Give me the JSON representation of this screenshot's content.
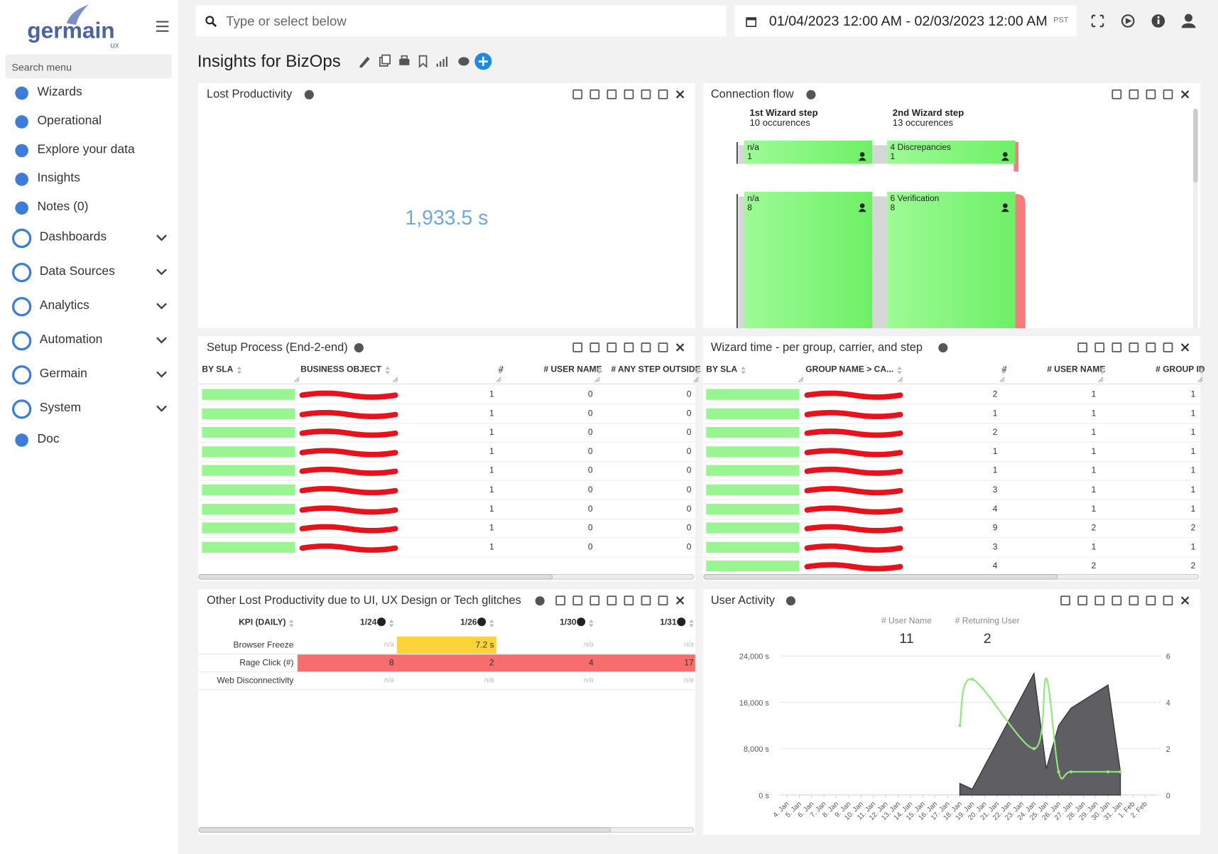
{
  "sidebar": {
    "logo": "germain",
    "logo_sub": "UX",
    "search_placeholder": "Search menu",
    "menu": [
      "Wizards",
      "Operational",
      "Explore your data",
      "Insights",
      "Notes (0)",
      "Dashboards",
      "Data Sources",
      "Analytics",
      "Automation",
      "Germain",
      "System",
      "Doc"
    ]
  },
  "topbar": {
    "search_placeholder": "Type or select below",
    "date_range": "01/04/2023 12:00 AM - 02/03/2023 12:00 AM",
    "timezone": "PST"
  },
  "page_title": "Insights for BizOps",
  "panels": {
    "lost_productivity": {
      "title": "Lost Productivity",
      "value": "1,933.5 s"
    },
    "connection_flow": {
      "title": "Connection flow",
      "steps": [
        {
          "name": "1st Wizard step",
          "occurrences": "10 occurences",
          "nodes": [
            {
              "label": "n/a",
              "count": 1
            },
            {
              "label": "n/a",
              "count": 8
            }
          ]
        },
        {
          "name": "2nd Wizard step",
          "occurrences": "13 occurences",
          "nodes": [
            {
              "label": "4 Discrepancies",
              "count": 1
            },
            {
              "label": "6 Verification",
              "count": 8
            }
          ]
        }
      ]
    },
    "setup_process": {
      "title": "Setup Process (End-2-end)",
      "columns": [
        "BY SLA",
        "BUSINESS OBJECT",
        "#",
        "# USER NAME",
        "# ANY STEP OUTSIDE"
      ],
      "rows": [
        [
          1,
          0,
          0
        ],
        [
          1,
          0,
          0
        ],
        [
          1,
          0,
          0
        ],
        [
          1,
          0,
          0
        ],
        [
          1,
          0,
          0
        ],
        [
          1,
          0,
          0
        ],
        [
          1,
          0,
          0
        ],
        [
          1,
          0,
          0
        ],
        [
          1,
          0,
          0
        ]
      ]
    },
    "wizard_time": {
      "title": "Wizard time - per group, carrier, and step",
      "columns": [
        "BY SLA",
        "GROUP NAME > CA...",
        "#",
        "# USER NAME",
        "# GROUP ID"
      ],
      "rows": [
        [
          2,
          1,
          1
        ],
        [
          1,
          1,
          1
        ],
        [
          2,
          1,
          1
        ],
        [
          1,
          1,
          1
        ],
        [
          1,
          1,
          1
        ],
        [
          3,
          1,
          1
        ],
        [
          4,
          1,
          1
        ],
        [
          9,
          2,
          2
        ],
        [
          3,
          1,
          1
        ],
        [
          4,
          2,
          2
        ]
      ]
    },
    "other_lost": {
      "title": "Other Lost Productivity due to UI, UX Design or Tech glitches",
      "columns": [
        "KPI (DAILY)",
        "1/24",
        "1/26",
        "1/30",
        "1/31"
      ],
      "rows": [
        {
          "kpi": "Browser Freeze",
          "cells": [
            "n/a",
            "7.2 s",
            "n/a",
            "n/a"
          ]
        },
        {
          "kpi": "Rage Click (#)",
          "cells": [
            8,
            2,
            4,
            17
          ]
        },
        {
          "kpi": "Web Disconnectivity",
          "cells": [
            "n/a",
            "n/a",
            "n/a",
            "n/a"
          ]
        }
      ]
    },
    "user_activity": {
      "title": "User Activity",
      "kpis": [
        {
          "label": "# User Name",
          "value": 11
        },
        {
          "label": "# Returning User",
          "value": 2
        }
      ],
      "chart": {
        "type": "area-line",
        "categories": [
          "4. Jan",
          "5. Jan",
          "6. Jan",
          "7. Jan",
          "8. Jan",
          "9. Jan",
          "10. Jan",
          "11. Jan",
          "12. Jan",
          "13. Jan",
          "14. Jan",
          "15. Jan",
          "16. Jan",
          "17. Jan",
          "18. Jan",
          "19. Jan",
          "20. Jan",
          "21. Jan",
          "22. Jan",
          "23. Jan",
          "24. Jan",
          "25. Jan",
          "26. Jan",
          "27. Jan",
          "28. Jan",
          "29. Jan",
          "30. Jan",
          "31. Jan",
          "1. Feb",
          "2. Feb"
        ],
        "ylim": [
          0,
          24000
        ],
        "yticks": [
          {
            "value": 0,
            "label": "0 s"
          },
          {
            "value": 8000,
            "label": "8,000 s"
          },
          {
            "value": 16000,
            "label": "16,000 s"
          },
          {
            "value": 24000,
            "label": "24,000 s"
          }
        ],
        "y2lim": [
          0,
          6
        ],
        "y2ticks": [
          0,
          2,
          4,
          6
        ],
        "grid": true,
        "series": [
          {
            "type": "area",
            "color": "#5f5f63",
            "x": [
              "18. Jan",
              "19. Jan",
              "24. Jan",
              "25. Jan",
              "26. Jan",
              "27. Jan",
              "30. Jan",
              "31. Jan"
            ],
            "values": [
              2000,
              1000,
              21000,
              4500,
              12000,
              15000,
              19000,
              4000
            ]
          },
          {
            "type": "spline",
            "axis": "y2",
            "color": "#8ee87a",
            "x": [
              "18. Jan",
              "19. Jan",
              "24. Jan",
              "25. Jan",
              "26. Jan",
              "27. Jan",
              "30. Jan",
              "31. Jan"
            ],
            "values": [
              3,
              5,
              2,
              5,
              1,
              1,
              1,
              1
            ]
          }
        ]
      }
    }
  }
}
